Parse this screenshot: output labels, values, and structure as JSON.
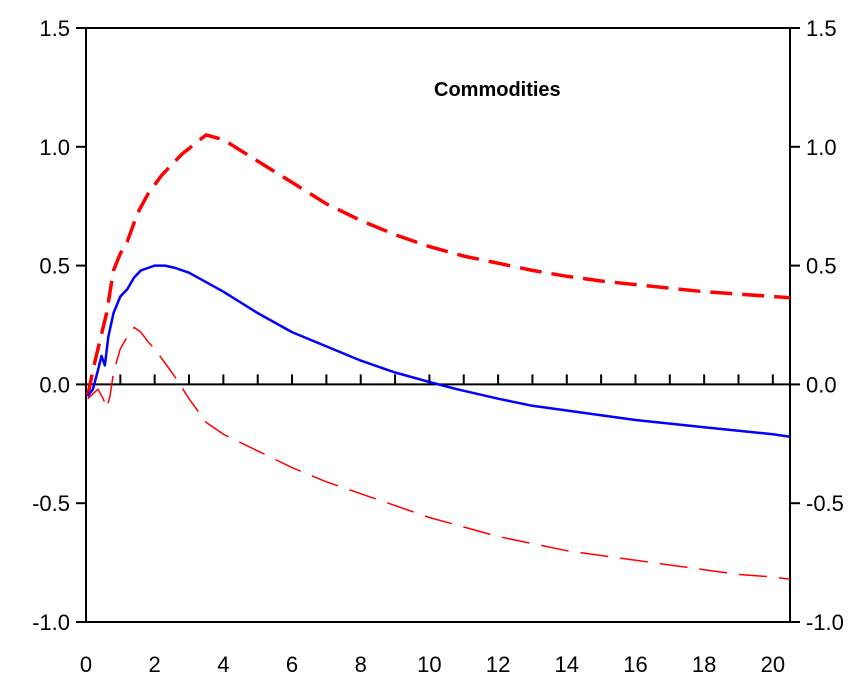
{
  "chart_data": {
    "type": "line",
    "title": "",
    "xlabel": "",
    "ylabel": "",
    "xlim": [
      0,
      20.5
    ],
    "ylim": [
      -1.0,
      1.5
    ],
    "x_ticks": [
      0,
      2,
      4,
      6,
      8,
      10,
      12,
      14,
      16,
      18,
      20
    ],
    "x_tick_labels": [
      "0",
      "2",
      "4",
      "6",
      "8",
      "10",
      "12",
      "14",
      "16",
      "18",
      "20"
    ],
    "y_ticks": [
      -1.0,
      -0.5,
      0.0,
      0.5,
      1.0,
      1.5
    ],
    "y_tick_labels": [
      "-1.0",
      "-0.5",
      "0.0",
      "0.5",
      "1.0",
      "1.5"
    ],
    "grid": false,
    "zero_line": true,
    "annotation": "Commodities",
    "series": [
      {
        "name": "",
        "color": "#ff0000",
        "style": "dashed-thick",
        "x": [
          0.05,
          0.2,
          0.4,
          0.6,
          0.8,
          1.0,
          1.2,
          1.5,
          1.8,
          2.2,
          2.8,
          3.5,
          4.0,
          5.0,
          6.0,
          7.0,
          8.0,
          9.0,
          10.0,
          11.0,
          12.0,
          13.0,
          14.0,
          15.0,
          16.0,
          17.0,
          18.0,
          19.0,
          20.0,
          20.5
        ],
        "y": [
          -0.05,
          0.06,
          0.18,
          0.3,
          0.48,
          0.55,
          0.6,
          0.72,
          0.8,
          0.88,
          0.97,
          1.05,
          1.03,
          0.94,
          0.85,
          0.76,
          0.69,
          0.63,
          0.58,
          0.54,
          0.51,
          0.48,
          0.455,
          0.435,
          0.42,
          0.405,
          0.39,
          0.38,
          0.37,
          0.365
        ]
      },
      {
        "name": "",
        "color": "#0000ff",
        "style": "solid",
        "x": [
          0.05,
          0.2,
          0.35,
          0.45,
          0.55,
          0.65,
          0.8,
          1.0,
          1.2,
          1.4,
          1.6,
          1.8,
          2.0,
          2.3,
          2.6,
          3.0,
          3.5,
          4.0,
          5.0,
          6.0,
          7.0,
          8.0,
          9.0,
          10.0,
          10.8,
          12.0,
          13.0,
          14.0,
          15.0,
          16.0,
          17.0,
          18.0,
          19.0,
          20.0,
          20.5
        ],
        "y": [
          -0.05,
          -0.02,
          0.06,
          0.12,
          0.08,
          0.2,
          0.3,
          0.37,
          0.4,
          0.45,
          0.48,
          0.49,
          0.5,
          0.5,
          0.49,
          0.47,
          0.43,
          0.39,
          0.3,
          0.22,
          0.16,
          0.1,
          0.05,
          0.01,
          -0.02,
          -0.06,
          -0.09,
          -0.11,
          -0.13,
          -0.15,
          -0.165,
          -0.18,
          -0.195,
          -0.21,
          -0.22
        ]
      },
      {
        "name": "",
        "color": "#ff0000",
        "style": "dashed-thin",
        "x": [
          0.05,
          0.2,
          0.35,
          0.5,
          0.6,
          0.7,
          0.8,
          1.0,
          1.2,
          1.4,
          1.6,
          1.8,
          2.0,
          2.3,
          2.6,
          3.0,
          3.5,
          4.0,
          5.0,
          6.0,
          7.0,
          8.0,
          9.0,
          10.0,
          11.0,
          12.0,
          13.0,
          14.0,
          15.0,
          16.0,
          17.0,
          18.0,
          19.0,
          20.0,
          20.5
        ],
        "y": [
          -0.06,
          -0.04,
          -0.02,
          -0.06,
          -0.1,
          -0.05,
          0.05,
          0.15,
          0.2,
          0.24,
          0.22,
          0.18,
          0.15,
          0.09,
          0.03,
          -0.06,
          -0.16,
          -0.21,
          -0.28,
          -0.35,
          -0.41,
          -0.46,
          -0.51,
          -0.56,
          -0.6,
          -0.64,
          -0.67,
          -0.7,
          -0.72,
          -0.74,
          -0.76,
          -0.78,
          -0.8,
          -0.81,
          -0.82
        ]
      }
    ]
  }
}
